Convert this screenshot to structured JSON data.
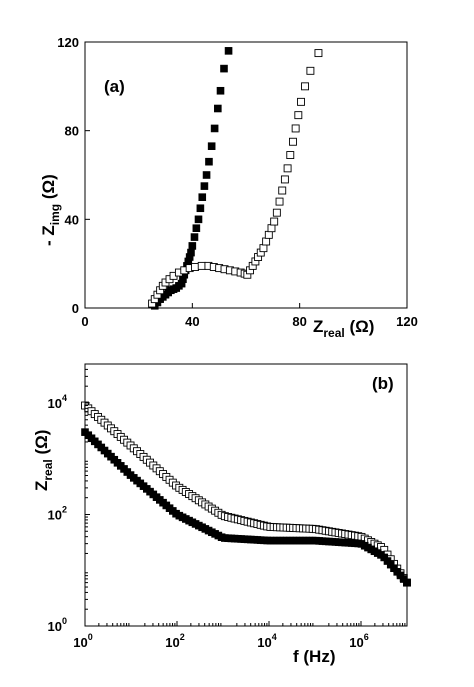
{
  "chart_data": [
    {
      "type": "scatter",
      "panel_label": "(a)",
      "xlabel": "Z",
      "xlabel_sub": "real",
      "xlabel_unit": " (Ω)",
      "ylabel_prefix": "- Z",
      "ylabel_sub": "img",
      "ylabel_unit": " (Ω)",
      "xlim": [
        0,
        120
      ],
      "ylim": [
        0,
        120
      ],
      "xticks": [
        0,
        40,
        80,
        120
      ],
      "yticks": [
        0,
        40,
        80,
        120
      ],
      "grid": false,
      "legend": "none",
      "series": [
        {
          "marker": "filled-square",
          "points": [
            [
              26,
              1
            ],
            [
              27,
              2.5
            ],
            [
              28,
              4
            ],
            [
              29,
              5
            ],
            [
              30,
              6
            ],
            [
              31,
              7
            ],
            [
              32,
              8
            ],
            [
              33,
              8.5
            ],
            [
              34,
              9
            ],
            [
              35,
              10
            ],
            [
              36,
              11
            ],
            [
              36.5,
              13
            ],
            [
              37,
              15
            ],
            [
              37.5,
              17
            ],
            [
              38,
              19
            ],
            [
              38.5,
              21
            ],
            [
              39,
              23
            ],
            [
              39.5,
              25
            ],
            [
              40,
              28
            ],
            [
              40.8,
              32
            ],
            [
              41.5,
              36
            ],
            [
              42.3,
              40
            ],
            [
              43,
              45
            ],
            [
              43.7,
              50
            ],
            [
              44.5,
              55
            ],
            [
              45.3,
              60
            ],
            [
              46.2,
              66
            ],
            [
              47.2,
              73
            ],
            [
              48.3,
              81
            ],
            [
              49.5,
              90
            ],
            [
              50.5,
              98
            ],
            [
              51.8,
              108
            ],
            [
              53.5,
              116
            ]
          ]
        },
        {
          "marker": "open-square",
          "points": [
            [
              25,
              2
            ],
            [
              26,
              4
            ],
            [
              27,
              6
            ],
            [
              28,
              8
            ],
            [
              29,
              10
            ],
            [
              30,
              11.5
            ],
            [
              31.5,
              13
            ],
            [
              33,
              14.5
            ],
            [
              35,
              16
            ],
            [
              37,
              17
            ],
            [
              39,
              18
            ],
            [
              41,
              18.5
            ],
            [
              43.5,
              19
            ],
            [
              46,
              19
            ],
            [
              48,
              18.5
            ],
            [
              50,
              18
            ],
            [
              52,
              17.5
            ],
            [
              54,
              17
            ],
            [
              56,
              16.5
            ],
            [
              58,
              16
            ],
            [
              59.5,
              15.5
            ],
            [
              60.5,
              15
            ],
            [
              61.5,
              17
            ],
            [
              62.5,
              19
            ],
            [
              63.5,
              21
            ],
            [
              64.5,
              23
            ],
            [
              65.5,
              25
            ],
            [
              66.5,
              27
            ],
            [
              67.5,
              30
            ],
            [
              68.5,
              33
            ],
            [
              69.5,
              36
            ],
            [
              70.5,
              39
            ],
            [
              71.5,
              43
            ],
            [
              72.5,
              48
            ],
            [
              73.5,
              53
            ],
            [
              74.5,
              58
            ],
            [
              75.5,
              63
            ],
            [
              76.5,
              69
            ],
            [
              77.5,
              75
            ],
            [
              78.5,
              81
            ],
            [
              79.5,
              87
            ],
            [
              80.5,
              93
            ],
            [
              82,
              100
            ],
            [
              84,
              107
            ],
            [
              87,
              115
            ]
          ]
        }
      ]
    },
    {
      "type": "scatter",
      "panel_label": "(b)",
      "xscale": "log",
      "yscale": "log",
      "xlabel": "f (Hz)",
      "ylabel": "Z",
      "ylabel_sub": "real",
      "ylabel_unit": " (Ω)",
      "xlim": [
        1,
        10000000
      ],
      "ylim": [
        1,
        50000
      ],
      "xticks": [
        {
          "base": "10",
          "exp": "0"
        },
        {
          "base": "10",
          "exp": "2"
        },
        {
          "base": "10",
          "exp": "4"
        },
        {
          "base": "10",
          "exp": "6"
        }
      ],
      "yticks": [
        {
          "base": "10",
          "exp": "0"
        },
        {
          "base": "10",
          "exp": "2"
        },
        {
          "base": "10",
          "exp": "4"
        }
      ],
      "grid": false,
      "legend": "none",
      "series": [
        {
          "marker": "open-square",
          "points": [
            [
              1,
              9000
            ],
            [
              10,
              1700
            ],
            [
              100,
              320
            ],
            [
              1000,
              95
            ],
            [
              10000,
              60
            ],
            [
              100000,
              55
            ],
            [
              1000000,
              40
            ],
            [
              3000000,
              25
            ],
            [
              10000000,
              6
            ]
          ]
        },
        {
          "marker": "filled-square",
          "points": [
            [
              1,
              3000
            ],
            [
              10,
              500
            ],
            [
              100,
              100
            ],
            [
              1000,
              38
            ],
            [
              10000,
              34
            ],
            [
              100000,
              34
            ],
            [
              1000000,
              30
            ],
            [
              3000000,
              18
            ],
            [
              10000000,
              6
            ]
          ]
        }
      ]
    }
  ]
}
